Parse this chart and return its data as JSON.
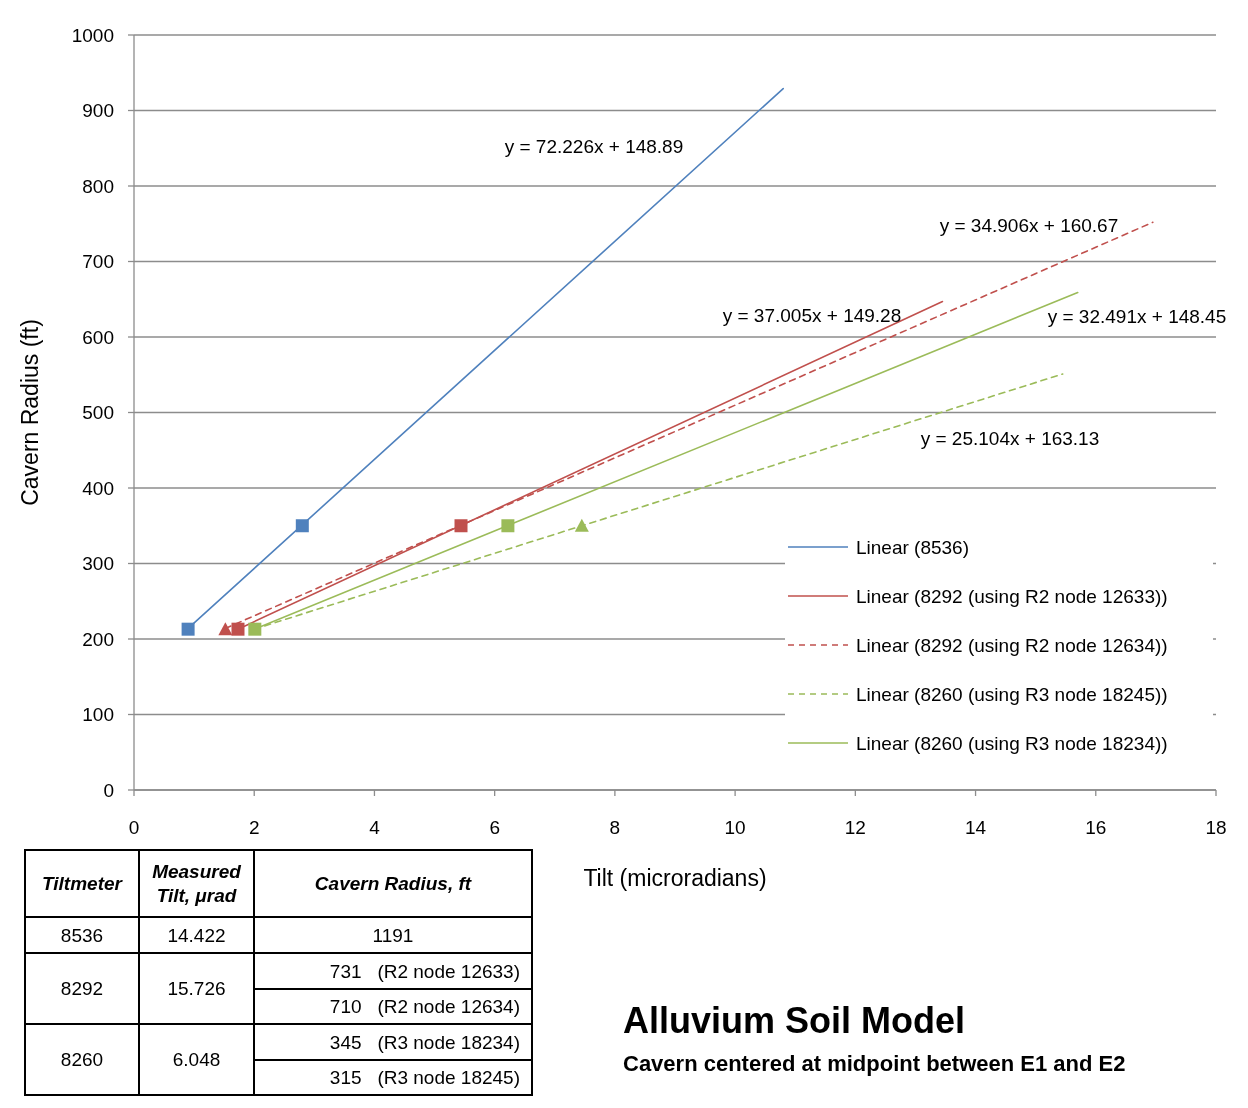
{
  "chart_data": {
    "type": "scatter",
    "title": "Alluvium Soil Model",
    "subtitle": "Cavern centered at midpoint between E1 and E2",
    "xlabel": "Tilt (microradians)",
    "ylabel": "Cavern Radius (ft)",
    "xlim": [
      0,
      18
    ],
    "xticks": [
      0,
      2,
      4,
      6,
      8,
      10,
      12,
      14,
      16,
      18
    ],
    "ylim": [
      0,
      1000
    ],
    "yticks": [
      0,
      100,
      200,
      300,
      400,
      500,
      600,
      700,
      800,
      900,
      1000
    ],
    "grid": "y",
    "legend": "bottom right",
    "series": [
      {
        "name": "Linear (8536)",
        "type": "line",
        "color": "#4f81bd",
        "line_style": "solid",
        "marker": "none",
        "x": [
          0.9,
          10.8
        ],
        "values": [
          214,
          929
        ]
      },
      {
        "name": "Linear (8292 (using R2 node 12633))",
        "type": "line",
        "color": "#c0504d",
        "line_style": "solid",
        "marker": "none",
        "x": [
          1.73,
          13.45
        ],
        "values": [
          213,
          647
        ]
      },
      {
        "name": "Linear (8292 (using R2 node 12634))",
        "type": "line",
        "color": "#c0504d",
        "line_style": "dashed",
        "marker": "none",
        "x": [
          1.52,
          16.95
        ],
        "values": [
          214,
          752
        ]
      },
      {
        "name": "Linear (8260 (using R3 node 18245))",
        "type": "line",
        "color": "#9bbb59",
        "line_style": "dashed",
        "marker": "none",
        "x": [
          2.0,
          15.45
        ],
        "values": [
          213,
          551
        ]
      },
      {
        "name": "Linear (8260 (using R3 node 18234))",
        "type": "line",
        "color": "#9bbb59",
        "line_style": "solid",
        "marker": "none",
        "x": [
          2.0,
          15.7
        ],
        "values": [
          213,
          659
        ]
      },
      {
        "color": "#4f81bd",
        "marker": "square",
        "x": [
          0.9,
          2.8
        ],
        "values": [
          213,
          350
        ]
      },
      {
        "color": "#c0504d",
        "marker": "square",
        "x": [
          1.73,
          5.44
        ],
        "values": [
          213,
          350
        ]
      },
      {
        "color": "#c0504d",
        "marker": "triangle",
        "x": [
          1.52
        ],
        "values": [
          213
        ]
      },
      {
        "color": "#9bbb59",
        "marker": "triangle",
        "x": [
          7.45
        ],
        "values": [
          350
        ]
      },
      {
        "color": "#9bbb59",
        "marker": "square",
        "x": [
          2.01,
          6.22
        ],
        "values": [
          213,
          350
        ]
      }
    ],
    "annotations": [
      "y = 72.226x + 148.89",
      "y = 34.906x + 160.67",
      "y = 37.005x + 149.28",
      "y = 32.491x + 148.45",
      "y = 25.104x + 163.13",
      "Tiltmeter",
      "Measured Tilt, μrad",
      "Cavern Radius, ft",
      "8536",
      "14.422",
      "1191",
      "8292",
      "15.726",
      "731   (R2 node 12633)",
      "710   (R2 node 12634)",
      "8260",
      "6.048",
      "345   (R3 node 18234)",
      "315   (R3 node 18245)"
    ]
  }
}
